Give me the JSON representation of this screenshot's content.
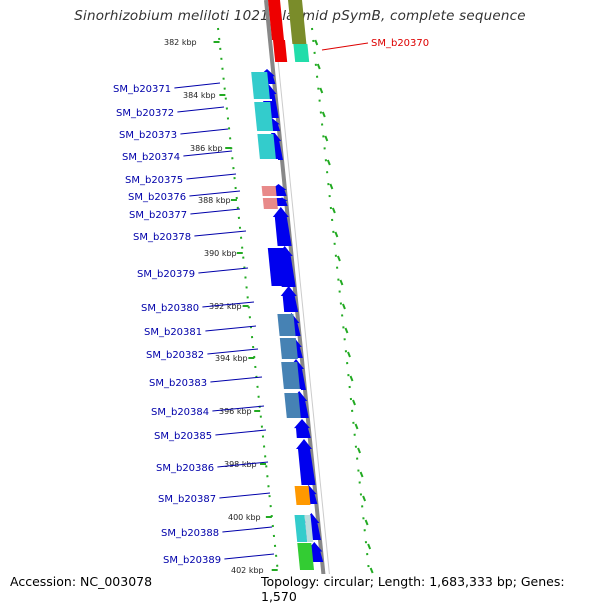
{
  "title": "Sinorhizobium meliloti 1021 plasmid pSymB, complete sequence",
  "footer": {
    "accession": "Accession: NC_003078",
    "summary": "Topology: circular; Length: 1,683,333 bp; Genes: 1,570"
  },
  "ticks": [
    "382 kbp",
    "384 kbp",
    "386 kbp",
    "388 kbp",
    "390 kbp",
    "392 kbp",
    "394 kbp",
    "396 kbp",
    "398 kbp",
    "400 kbp",
    "402 kbp"
  ],
  "right_labels": [
    {
      "text": "SM_b20370",
      "color": "#dd0000"
    }
  ],
  "gene_labels": [
    "SM_b20371",
    "SM_b20372",
    "SM_b20373",
    "SM_b20374",
    "SM_b20375",
    "SM_b20376",
    "SM_b20377",
    "SM_b20378",
    "SM_b20379",
    "SM_b20380",
    "SM_b20381",
    "SM_b20382",
    "SM_b20383",
    "SM_b20384",
    "SM_b20385",
    "SM_b20386",
    "SM_b20387",
    "SM_b20388",
    "SM_b20389"
  ],
  "colors": {
    "label_blue": "#0000aa",
    "label_red": "#dd0000",
    "cds_blue": "#0000ee",
    "backbone": "#888888",
    "dots": "#22aa22",
    "cyan": "#33cccc",
    "steel": "#4682b4",
    "pink": "#e88a8a",
    "orange": "#ff9900",
    "green": "#33cc33",
    "red": "#ee0000",
    "olive": "#7a8c2a"
  }
}
